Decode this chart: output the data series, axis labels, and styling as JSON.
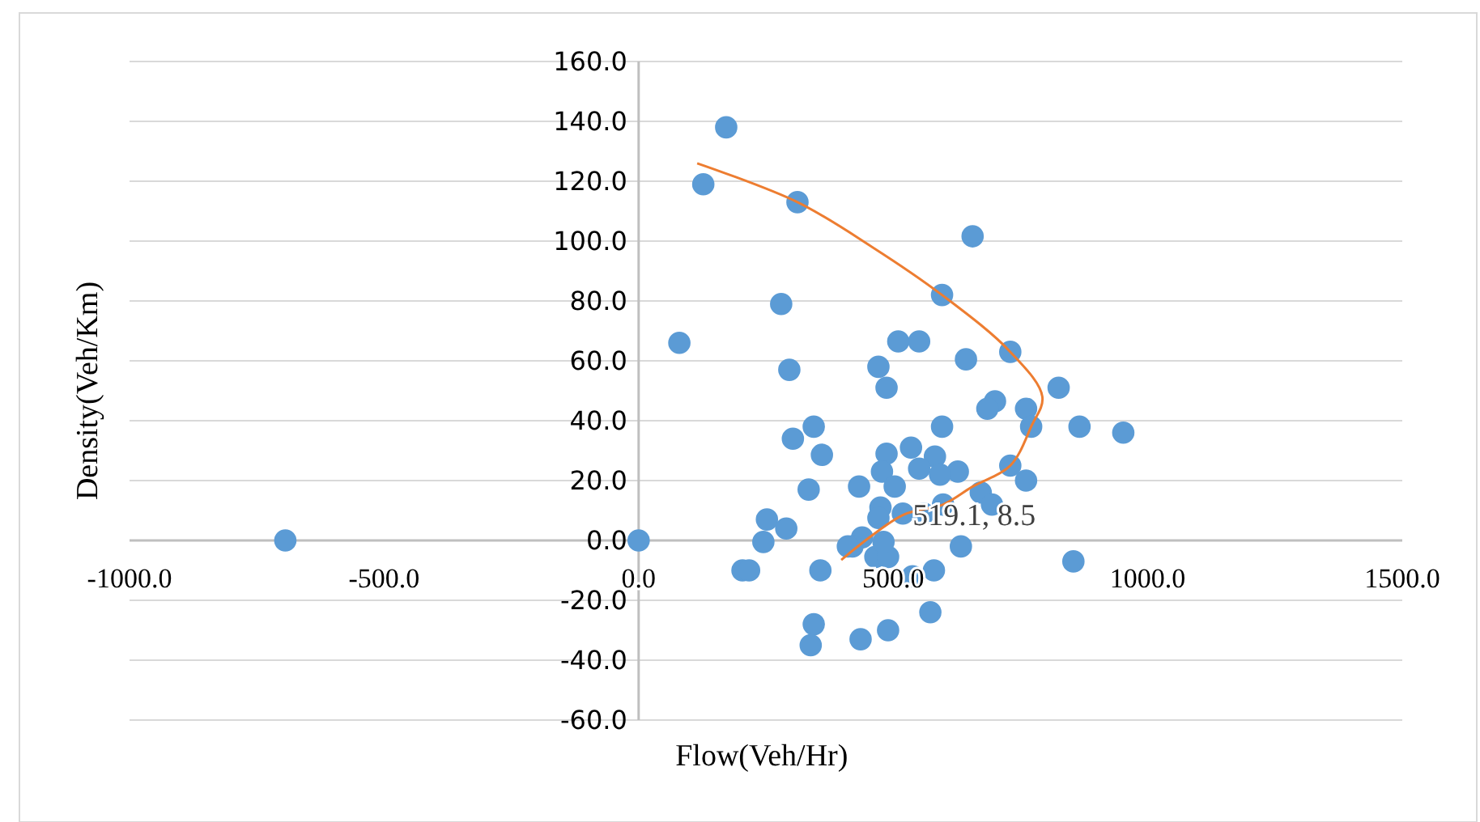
{
  "chart_data": {
    "type": "scatter",
    "xlabel": "Flow(Veh/Hr)",
    "ylabel": "Density(Veh/Km)",
    "xlim": [
      -1000,
      1500
    ],
    "ylim": [
      -60,
      160
    ],
    "xticks": [
      {
        "value": -1000,
        "label": "-1000.0"
      },
      {
        "value": -500,
        "label": "-500.0"
      },
      {
        "value": 0,
        "label": "0.0"
      },
      {
        "value": 500,
        "label": "500.0"
      },
      {
        "value": 1000,
        "label": "1000.0"
      },
      {
        "value": 1500,
        "label": "1500.0"
      }
    ],
    "yticks": [
      {
        "value": -60,
        "label": "-60.0"
      },
      {
        "value": -40,
        "label": "-40.0"
      },
      {
        "value": -20,
        "label": "-20.0"
      },
      {
        "value": 0,
        "label": "0.0"
      },
      {
        "value": 20,
        "label": "20.0"
      },
      {
        "value": 40,
        "label": "40.0"
      },
      {
        "value": 60,
        "label": "60.0"
      },
      {
        "value": 80,
        "label": "80.0"
      },
      {
        "value": 100,
        "label": "100.0"
      },
      {
        "value": 120,
        "label": "120.0"
      },
      {
        "value": 140,
        "label": "140.0"
      },
      {
        "value": 160,
        "label": "160.0"
      }
    ],
    "grid": "y",
    "marker": "circle",
    "series": [
      {
        "color": "#5b9bd5",
        "x": [
          -694,
          0,
          172,
          127,
          312,
          656,
          280,
          80,
          596,
          510,
          551,
          643,
          730,
          471,
          296,
          487,
          825,
          700,
          685,
          761,
          771,
          866,
          952,
          596,
          344,
          303,
          360,
          535,
          487,
          582,
          551,
          627,
          730,
          761,
          478,
          433,
          334,
          592,
          503,
          475,
          519,
          560,
          598,
          672,
          694,
          471,
          252,
          290,
          245,
          439,
          420,
          633,
          854,
          204,
          217,
          357,
          465,
          490,
          538,
          580,
          573,
          344,
          338,
          436,
          490,
          411,
          481
        ],
        "values": [
          0,
          0,
          138,
          119,
          113,
          101.6,
          79,
          66,
          82,
          66.5,
          66.5,
          60.5,
          63,
          58,
          57,
          51,
          51,
          46.5,
          44,
          44,
          38,
          38,
          36,
          38,
          38,
          34,
          28.6,
          31,
          29,
          28,
          24,
          23,
          25,
          20,
          23,
          18,
          17,
          22,
          18,
          11,
          9,
          9,
          12,
          16,
          12,
          7.5,
          7,
          4,
          -0.5,
          1,
          -2,
          -2,
          -7,
          -10,
          -10,
          -10,
          -5.5,
          -5.5,
          -12,
          -10,
          -24,
          -28,
          -35,
          -33,
          -30,
          -2,
          -0.5
        ]
      },
      {
        "type": "line",
        "color": "#ed7d31",
        "marker": "none",
        "x": [
          115,
          312,
          459,
          596,
          730,
          793,
          771,
          730,
          656,
          598,
          519.1,
          398
        ],
        "values": [
          126,
          113,
          98,
          82,
          63,
          48,
          38,
          25,
          18,
          12,
          8.5,
          -6.5
        ]
      }
    ],
    "annotations": [
      {
        "text": "519.1, 8.5",
        "x": 519.1,
        "y": 8.5
      }
    ]
  }
}
